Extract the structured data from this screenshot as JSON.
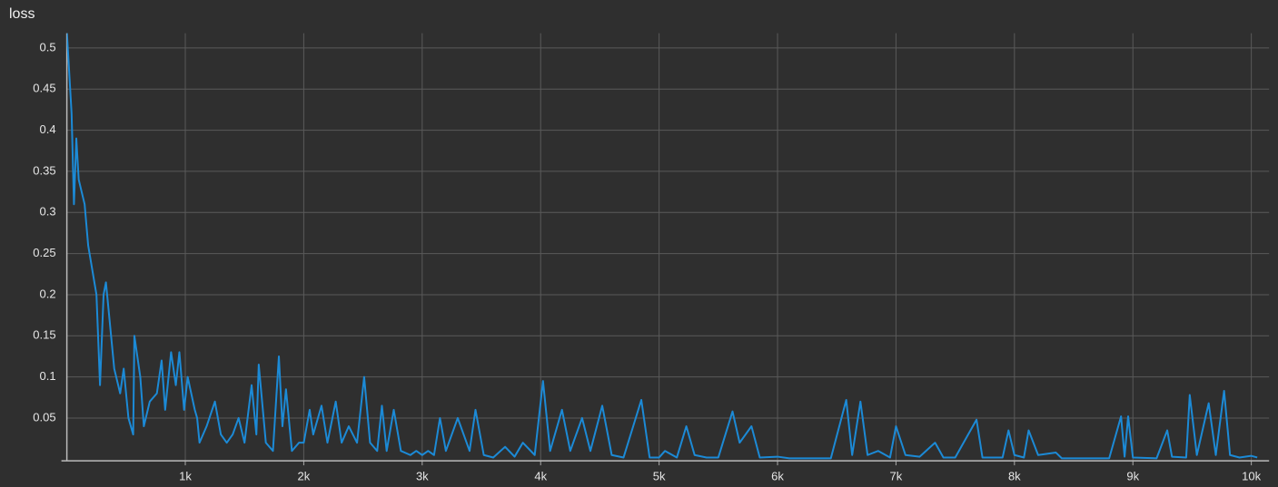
{
  "chart_data": {
    "type": "line",
    "title": "loss",
    "x": [
      0,
      20,
      40,
      60,
      80,
      100,
      150,
      180,
      250,
      280,
      310,
      330,
      360,
      400,
      450,
      480,
      520,
      560,
      570,
      620,
      650,
      700,
      760,
      800,
      830,
      880,
      920,
      950,
      990,
      1020,
      1080,
      1100,
      1120,
      1180,
      1250,
      1300,
      1350,
      1400,
      1450,
      1500,
      1560,
      1600,
      1620,
      1680,
      1740,
      1790,
      1820,
      1850,
      1900,
      1960,
      2000,
      2050,
      2080,
      2150,
      2200,
      2270,
      2320,
      2380,
      2450,
      2510,
      2560,
      2620,
      2660,
      2700,
      2760,
      2820,
      2900,
      2950,
      3000,
      3050,
      3100,
      3150,
      3200,
      3300,
      3400,
      3450,
      3520,
      3600,
      3700,
      3780,
      3850,
      3950,
      4020,
      4080,
      4180,
      4250,
      4350,
      4420,
      4520,
      4600,
      4700,
      4850,
      4920,
      5000,
      5050,
      5150,
      5230,
      5300,
      5400,
      5500,
      5620,
      5680,
      5780,
      5850,
      6000,
      6100,
      6300,
      6450,
      6580,
      6630,
      6700,
      6760,
      6850,
      6950,
      7000,
      7080,
      7200,
      7330,
      7400,
      7500,
      7680,
      7730,
      7900,
      7950,
      8000,
      8080,
      8120,
      8200,
      8350,
      8400,
      8600,
      8800,
      8900,
      8930,
      8960,
      9000,
      9200,
      9290,
      9330,
      9450,
      9480,
      9540,
      9640,
      9700,
      9770,
      9820,
      9900,
      10000,
      10050
    ],
    "values": [
      0.52,
      0.47,
      0.42,
      0.31,
      0.39,
      0.34,
      0.31,
      0.26,
      0.2,
      0.09,
      0.2,
      0.215,
      0.17,
      0.11,
      0.08,
      0.11,
      0.05,
      0.03,
      0.15,
      0.1,
      0.04,
      0.07,
      0.08,
      0.12,
      0.06,
      0.13,
      0.09,
      0.13,
      0.06,
      0.1,
      0.06,
      0.05,
      0.02,
      0.04,
      0.07,
      0.03,
      0.02,
      0.03,
      0.05,
      0.02,
      0.09,
      0.03,
      0.115,
      0.02,
      0.01,
      0.125,
      0.04,
      0.085,
      0.01,
      0.02,
      0.02,
      0.06,
      0.03,
      0.065,
      0.02,
      0.07,
      0.02,
      0.04,
      0.02,
      0.1,
      0.02,
      0.01,
      0.065,
      0.01,
      0.06,
      0.01,
      0.005,
      0.01,
      0.005,
      0.01,
      0.005,
      0.05,
      0.01,
      0.05,
      0.01,
      0.06,
      0.005,
      0.002,
      0.015,
      0.003,
      0.02,
      0.005,
      0.095,
      0.01,
      0.06,
      0.01,
      0.05,
      0.01,
      0.065,
      0.005,
      0.002,
      0.072,
      0.002,
      0.002,
      0.01,
      0.002,
      0.04,
      0.005,
      0.002,
      0.002,
      0.058,
      0.02,
      0.04,
      0.002,
      0.003,
      0.001,
      0.001,
      0.001,
      0.072,
      0.005,
      0.07,
      0.005,
      0.01,
      0.002,
      0.04,
      0.005,
      0.003,
      0.02,
      0.002,
      0.002,
      0.048,
      0.002,
      0.002,
      0.035,
      0.005,
      0.002,
      0.035,
      0.005,
      0.008,
      0.001,
      0.001,
      0.001,
      0.052,
      0.003,
      0.052,
      0.002,
      0.001,
      0.035,
      0.003,
      0.002,
      0.078,
      0.005,
      0.068,
      0.005,
      0.083,
      0.005,
      0.002,
      0.004,
      0.002
    ],
    "color": "#1c8ad6",
    "xlim": [
      0,
      10150
    ],
    "ylim": [
      -0.002,
      0.518
    ],
    "xticks": [
      {
        "value": 1000,
        "label": "1k"
      },
      {
        "value": 2000,
        "label": "2k"
      },
      {
        "value": 3000,
        "label": "3k"
      },
      {
        "value": 4000,
        "label": "4k"
      },
      {
        "value": 5000,
        "label": "5k"
      },
      {
        "value": 6000,
        "label": "6k"
      },
      {
        "value": 7000,
        "label": "7k"
      },
      {
        "value": 8000,
        "label": "8k"
      },
      {
        "value": 9000,
        "label": "9k"
      },
      {
        "value": 10000,
        "label": "10k"
      }
    ],
    "yticks": [
      0.05,
      0.1,
      0.15,
      0.2,
      0.25,
      0.3,
      0.35,
      0.4,
      0.45,
      0.5
    ],
    "grid": true
  }
}
